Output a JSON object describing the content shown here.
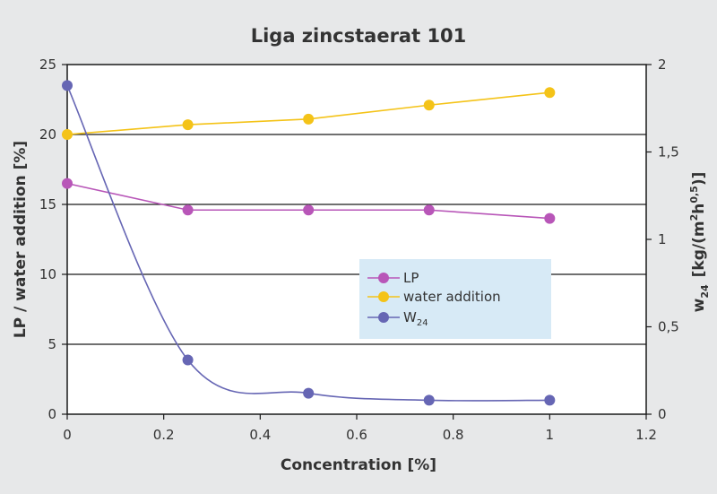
{
  "chart_data": {
    "type": "line",
    "title": "Liga zincstaerat 101",
    "xlabel": "Concentration [%]",
    "ylabel": "LP / water addition [%]",
    "y2label": {
      "main": "w",
      "sub": "24",
      "after": "[kg/(m",
      "sup1": "2",
      "mid": "h",
      "sup2": "0,5",
      "end": ")]"
    },
    "xlim": [
      0,
      1.2
    ],
    "ylim": [
      0,
      25
    ],
    "y2lim": [
      0,
      2
    ],
    "xticks": [
      "0",
      "0.2",
      "0.4",
      "0.6",
      "0.8",
      "1",
      "1.2"
    ],
    "yticks": [
      "0",
      "5",
      "10",
      "15",
      "20",
      "25"
    ],
    "y2ticks": [
      "0",
      "0,5",
      "1",
      "1,5",
      "2"
    ],
    "grid": "horizontal",
    "legend_position": "center-right",
    "series": [
      {
        "name": "LP",
        "axis": "left",
        "color": "#b856b8",
        "x": [
          0,
          0.25,
          0.5,
          0.75,
          1
        ],
        "y": [
          16.5,
          14.6,
          14.6,
          14.6,
          14.0
        ]
      },
      {
        "name": "water addition",
        "axis": "left",
        "color": "#f4c318",
        "x": [
          0,
          0.25,
          0.5,
          0.75,
          1
        ],
        "y": [
          20.0,
          20.7,
          21.1,
          22.1,
          23.0
        ]
      },
      {
        "name": "W",
        "name_sub": "24",
        "axis": "right",
        "color": "#6666b4",
        "x": [
          0,
          0.25,
          0.5,
          0.75,
          1
        ],
        "y": [
          1.88,
          0.31,
          0.12,
          0.08,
          0.08
        ]
      }
    ]
  }
}
